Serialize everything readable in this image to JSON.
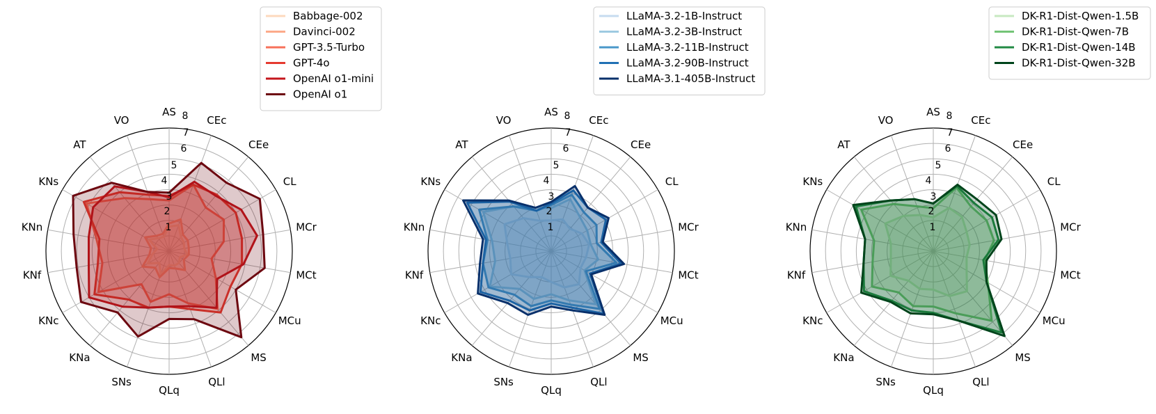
{
  "chart_data": [
    {
      "type": "radar",
      "axes": [
        "AS",
        "CEc",
        "CEe",
        "CL",
        "MCr",
        "MCt",
        "MCu",
        "MS",
        "QLl",
        "QLq",
        "SNs",
        "KNa",
        "KNc",
        "KNf",
        "KNn",
        "KNs",
        "AT",
        "VO"
      ],
      "ticks": [
        1,
        2,
        3,
        4,
        5,
        6,
        7,
        8
      ],
      "rlim": [
        0,
        8
      ],
      "grid": true,
      "legend_position": "top-right",
      "series": [
        {
          "name": "Babbage-002",
          "color": "#fdd9bd",
          "values": [
            1.6,
            1.8,
            1.2,
            1.1,
            1.0,
            1.2,
            0.8,
            1.0,
            1.0,
            0.9,
            1.6,
            1.0,
            1.6,
            1.1,
            0.8,
            1.5,
            1.1,
            1.0
          ]
        },
        {
          "name": "Davinci-002",
          "color": "#fcaa8a",
          "values": [
            1.8,
            2.2,
            1.4,
            1.4,
            1.3,
            1.3,
            1.1,
            1.6,
            1.2,
            1.1,
            1.8,
            1.4,
            2.0,
            1.3,
            1.2,
            1.8,
            1.3,
            1.2
          ]
        },
        {
          "name": "GPT-3.5-Turbo",
          "color": "#f7715a",
          "values": [
            3.3,
            4.6,
            3.7,
            4.1,
            3.6,
            2.8,
            3.5,
            4.9,
            3.6,
            2.8,
            3.5,
            2.8,
            5.3,
            4.4,
            4.8,
            6.2,
            4.5,
            3.6
          ]
        },
        {
          "name": "GPT-4o",
          "color": "#e53a2f",
          "values": [
            3.6,
            4.6,
            4.8,
            5.0,
            4.8,
            4.8,
            4.6,
            5.2,
            4.0,
            3.6,
            3.9,
            4.1,
            5.6,
            4.7,
            4.6,
            6.4,
            5.0,
            3.9
          ]
        },
        {
          "name": "OpenAI o1-mini",
          "color": "#c4161c",
          "values": [
            3.5,
            4.8,
            4.7,
            5.4,
            5.8,
            4.9,
            3.6,
            4.8,
            3.8,
            3.6,
            3.9,
            4.7,
            6.0,
            5.3,
            5.3,
            5.7,
            5.5,
            4.1
          ]
        },
        {
          "name": "OpenAI o1",
          "color": "#6d0810",
          "values": [
            3.8,
            6.1,
            5.8,
            6.8,
            6.2,
            6.3,
            5.0,
            7.3,
            4.7,
            4.4,
            5.9,
            5.2,
            6.6,
            6.1,
            6.3,
            7.2,
            5.8,
            4.1
          ]
        }
      ]
    },
    {
      "type": "radar",
      "axes": [
        "AS",
        "CEc",
        "CEe",
        "CL",
        "MCr",
        "MCt",
        "MCu",
        "MS",
        "QLl",
        "QLq",
        "SNs",
        "KNa",
        "KNc",
        "KNf",
        "KNn",
        "KNs",
        "AT",
        "VO"
      ],
      "ticks": [
        1,
        2,
        3,
        4,
        5,
        6,
        7,
        8
      ],
      "rlim": [
        0,
        8
      ],
      "grid": true,
      "legend_position": "top-right",
      "series": [
        {
          "name": "LLaMA-3.2-1B-Instruct",
          "color": "#c6dbef",
          "values": [
            2.0,
            2.2,
            1.9,
            2.3,
            2.5,
            2.3,
            2.2,
            2.8,
            2.5,
            2.0,
            1.8,
            2.2,
            3.0,
            2.7,
            2.9,
            3.5,
            2.8,
            2.1
          ]
        },
        {
          "name": "LLaMA-3.2-3B-Instruct",
          "color": "#9ecae1",
          "values": [
            2.8,
            3.6,
            2.9,
            2.7,
            2.6,
            3.1,
            2.5,
            4.5,
            3.4,
            2.8,
            3.3,
            3.2,
            4.6,
            3.7,
            3.9,
            5.1,
            3.8,
            3.0
          ]
        },
        {
          "name": "LLaMA-3.2-11B-Instruct",
          "color": "#4a98c9",
          "values": [
            3.0,
            3.9,
            3.3,
            3.4,
            3.0,
            4.3,
            2.6,
            4.9,
            3.7,
            3.2,
            3.8,
            3.7,
            4.7,
            4.5,
            4.2,
            5.4,
            3.8,
            2.8
          ]
        },
        {
          "name": "LLaMA-3.2-90B-Instruct",
          "color": "#2070b4",
          "values": [
            3.1,
            4.2,
            3.7,
            4.1,
            3.3,
            4.6,
            2.9,
            5.3,
            3.9,
            3.4,
            4.1,
            4.2,
            5.3,
            4.5,
            4.3,
            6.3,
            4.2,
            2.8
          ]
        },
        {
          "name": "LLaMA-3.1-405B-Instruct",
          "color": "#08306b",
          "values": [
            3.2,
            4.5,
            3.7,
            4.3,
            3.4,
            4.8,
            3.0,
            5.4,
            4.1,
            3.6,
            4.4,
            4.4,
            5.5,
            4.7,
            4.5,
            6.6,
            4.3,
            3.0
          ]
        }
      ]
    },
    {
      "type": "radar",
      "axes": [
        "AS",
        "CEc",
        "CEe",
        "CL",
        "MCr",
        "MCt",
        "MCu",
        "MS",
        "QLl",
        "QLq",
        "SNs",
        "KNa",
        "KNc",
        "KNf",
        "KNn",
        "KNs",
        "AT",
        "VO"
      ],
      "ticks": [
        1,
        2,
        3,
        4,
        5,
        6,
        7,
        8
      ],
      "rlim": [
        0,
        8
      ],
      "grid": true,
      "legend_position": "top-right",
      "series": [
        {
          "name": "DK-R1-Dist-Qwen-1.5B",
          "color": "#c7e9c0",
          "values": [
            2.2,
            3.0,
            2.9,
            2.5,
            2.4,
            2.2,
            2.5,
            3.4,
            3.1,
            2.5,
            2.6,
            2.5,
            3.2,
            2.8,
            2.8,
            3.6,
            3.0,
            2.5
          ]
        },
        {
          "name": "DK-R1-Dist-Qwen-7B",
          "color": "#73c476",
          "values": [
            2.8,
            4.4,
            3.8,
            4.0,
            4.0,
            3.4,
            4.1,
            5.9,
            4.3,
            3.6,
            3.8,
            3.5,
            4.6,
            4.0,
            3.9,
            5.4,
            4.0,
            3.1
          ]
        },
        {
          "name": "DK-R1-Dist-Qwen-14B",
          "color": "#228a44",
          "values": [
            3.1,
            4.5,
            4.1,
            4.4,
            4.3,
            3.3,
            4.0,
            6.9,
            4.8,
            4.0,
            4.1,
            4.2,
            5.2,
            4.6,
            4.5,
            5.8,
            4.3,
            3.6
          ]
        },
        {
          "name": "DK-R1-Dist-Qwen-32B",
          "color": "#00441b",
          "values": [
            3.1,
            4.6,
            4.4,
            4.7,
            4.5,
            3.5,
            4.0,
            7.2,
            4.8,
            4.1,
            4.3,
            4.3,
            5.4,
            4.6,
            4.5,
            6.0,
            4.3,
            3.6
          ]
        }
      ]
    }
  ]
}
